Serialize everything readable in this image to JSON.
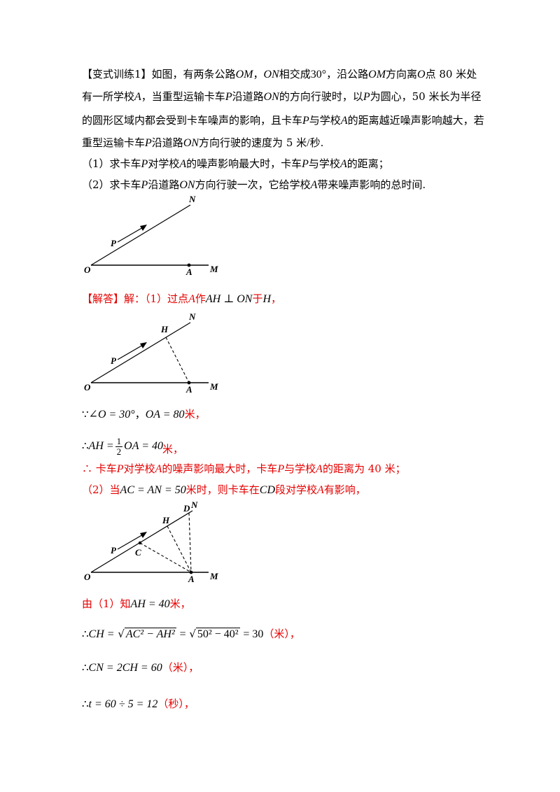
{
  "problem": {
    "header": "【变式训练1】",
    "l1_a": "如图，有两条公路",
    "OM": "OM",
    "sep": "，",
    "ON": "ON",
    "l1_b": "相交成",
    "angle": "30°",
    "l1_c": "，沿公路",
    "l1_d": "方向离",
    "O": "O",
    "l1_e": "点 80 米处",
    "l2_a": "有一所学校",
    "A": "A",
    "l2_b": "，当重型运输卡车",
    "P": "P",
    "l2_c": "沿道路",
    "l2_d": "的方向行驶时，以",
    "l2_e": "为圆心，50 米长为半径",
    "l3_a": "的圆形区域内都会受到卡车噪声的影响，且卡车",
    "l3_b": "与学校",
    "l3_c": "的距离越近噪声影响越大，若",
    "l4_a": "重型运输卡车",
    "l4_b": "沿道路",
    "l4_c": "方向行驶的速度为 5 米",
    "slash": "/",
    "l4_d": "秒.",
    "q1_a": "（1）求卡车",
    "q1_b": "对学校",
    "q1_c": "的噪声影响最大时，卡车",
    "q1_d": "与学校",
    "q1_e": "的距离；",
    "q2_a": "（2）求卡车",
    "q2_b": "沿道路",
    "q2_c": "方向行驶一次，它给学校",
    "q2_d": "带来噪声影响的总时间."
  },
  "figure_labels": {
    "N": "N",
    "P": "P",
    "O": "O",
    "A": "A",
    "M": "M",
    "H": "H",
    "C": "C",
    "D": "D"
  },
  "solution": {
    "header": "【解答】",
    "s1_a": "解：（1）过点",
    "s1_b": "作",
    "s1_expr": "AH ⊥ ON",
    "s1_c": "于",
    "s1_H": "H",
    "s1_d": "，",
    "since": "∵",
    "angleO": "∠O = 30°",
    "sep": "，",
    "OA": "OA = 80",
    "unit_m_comma": "米，",
    "therefore": "∴",
    "AH_eq": "AH =",
    "half_num": "1",
    "half_den": "2",
    "OA_40": "OA = 40",
    "c1_a": "∴ 卡车",
    "c1_b": "对学校",
    "c1_c": "的噪声影响最大时，卡车",
    "c1_d": "与学校",
    "c1_e": "的距离为 40 米；",
    "p2_a": "（2）当",
    "p2_expr": "AC = AN = 50",
    "p2_b": "米时，则卡车在",
    "CD": "CD",
    "p2_c": "段对学校",
    "p2_d": "有影响，",
    "r_a": "由（1）知",
    "r_expr": "AH = 40",
    "r_b": "米，",
    "ch_lhs": "CH =",
    "ch_rad1": "AC² − AH²",
    "eq": "=",
    "ch_rad2": "50² − 40²",
    "ch_res": "= 30",
    "unit_paren_m": "（米），",
    "cn_expr": "CN = 2CH = 60",
    "t_expr": "t = 60 ÷ 5 = 12",
    "unit_paren_s": "（秒），"
  }
}
